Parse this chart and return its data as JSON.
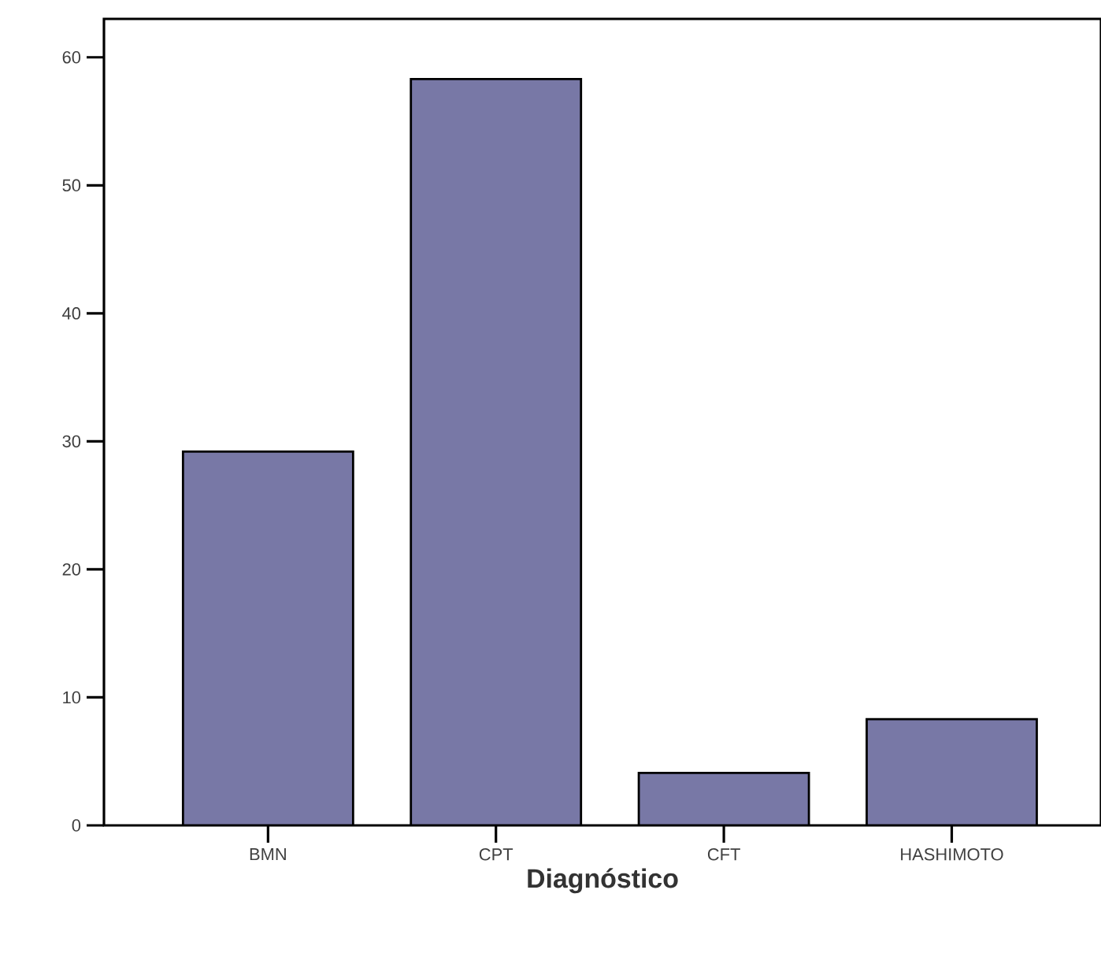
{
  "chart_data": {
    "type": "bar",
    "xlabel": "Diagnóstico",
    "categories": [
      "BMN",
      "CPT",
      "CFT",
      "HASHIMOTO"
    ],
    "values": [
      29.2,
      58.3,
      4.1,
      8.3
    ],
    "color": "#7878a6",
    "ylim": [
      0,
      63
    ],
    "yticks": [
      0,
      10,
      20,
      30,
      40,
      50,
      60
    ]
  }
}
